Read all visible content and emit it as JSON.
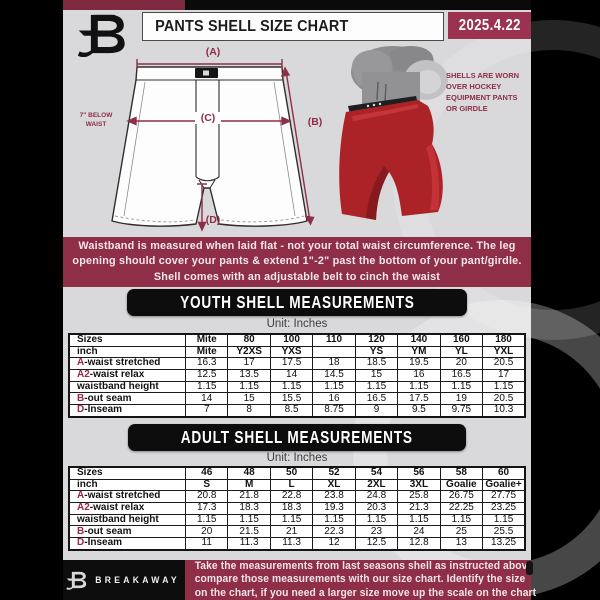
{
  "header": {
    "title": "PANTS SHELL SIZE CHART",
    "date": "2025.4.22"
  },
  "brand": {
    "name": "BREAKAWAY"
  },
  "diagram": {
    "label_a": "(A)",
    "label_b": "(B)",
    "label_c": "(C)",
    "label_d": "(D)",
    "waist_note_lines": [
      "7\" BELOW",
      "WAIST"
    ],
    "photo_note_lines": [
      "SHELLS ARE WORN",
      "OVER HOCKEY",
      "EQUIPMENT PANTS",
      "OR GIRDLE"
    ]
  },
  "banner": {
    "lines": [
      "Waistband is measured when laid flat - not your total waist circumference. The leg",
      "opening should cover your pants & extend 1\"-2\" past the bottom of your pant/girdle.",
      "Shell comes with an adjustable belt to cinch the waist"
    ]
  },
  "youth": {
    "heading": "YOUTH SHELL MEASUREMENTS",
    "unit": "Unit: Inches",
    "table": {
      "rows": [
        {
          "prefix": "",
          "label": "Sizes",
          "header": true,
          "values": [
            "Mite",
            "80",
            "100",
            "110",
            "120",
            "140",
            "160",
            "180"
          ]
        },
        {
          "prefix": "",
          "label": "inch",
          "header": true,
          "values": [
            "Mite",
            "Y2XS",
            "YXS",
            "",
            "YS",
            "YM",
            "YL",
            "YXL"
          ]
        },
        {
          "prefix": "A",
          "label": "-waist stretched",
          "values": [
            "16.3",
            "17",
            "17.5",
            "18",
            "18.5",
            "19.5",
            "20",
            "20.5"
          ]
        },
        {
          "prefix": "A2",
          "label": "-waist relax",
          "values": [
            "12.5",
            "13.5",
            "14",
            "14.5",
            "15",
            "16",
            "16.5",
            "17"
          ]
        },
        {
          "prefix": "",
          "label": "waistband height",
          "values": [
            "1.15",
            "1.15",
            "1.15",
            "1.15",
            "1.15",
            "1.15",
            "1.15",
            "1.15"
          ]
        },
        {
          "prefix": "B",
          "label": "-out seam",
          "values": [
            "14",
            "15",
            "15.5",
            "16",
            "16.5",
            "17.5",
            "19",
            "20.5"
          ]
        },
        {
          "prefix": "D",
          "label": "-Inseam",
          "values": [
            "7",
            "8",
            "8.5",
            "8.75",
            "9",
            "9.5",
            "9.75",
            "10.3"
          ]
        }
      ]
    }
  },
  "adult": {
    "heading": "ADULT SHELL MEASUREMENTS",
    "unit": "Unit: Inches",
    "table": {
      "rows": [
        {
          "prefix": "",
          "label": "Sizes",
          "header": true,
          "values": [
            "46",
            "48",
            "50",
            "52",
            "54",
            "56",
            "58",
            "60"
          ]
        },
        {
          "prefix": "",
          "label": "inch",
          "header": true,
          "values": [
            "S",
            "M",
            "L",
            "XL",
            "2XL",
            "3XL",
            "Goalie",
            "Goalie+"
          ]
        },
        {
          "prefix": "A",
          "label": "-waist stretched",
          "values": [
            "20.8",
            "21.8",
            "22.8",
            "23.8",
            "24.8",
            "25.8",
            "26.75",
            "27.75"
          ]
        },
        {
          "prefix": "A2",
          "label": "-waist relax",
          "values": [
            "17.3",
            "18.3",
            "18.3",
            "19.3",
            "20.3",
            "21.3",
            "22.25",
            "23.25"
          ]
        },
        {
          "prefix": "",
          "label": "waistband height",
          "values": [
            "1.15",
            "1.15",
            "1.15",
            "1.15",
            "1.15",
            "1.15",
            "1.15",
            "1.15"
          ]
        },
        {
          "prefix": "B",
          "label": "-out seam",
          "values": [
            "20",
            "21.5",
            "21",
            "22.3",
            "23",
            "24",
            "25",
            "25.5"
          ]
        },
        {
          "prefix": "D",
          "label": "-Inseam",
          "values": [
            "11",
            "11.3",
            "11.3",
            "12",
            "12.5",
            "12.8",
            "13",
            "13.25"
          ]
        }
      ]
    }
  },
  "footer": {
    "lines": [
      "Take the measurements from last seasons shell as instructed above",
      "compare those measurements  with our size chart. Identify the size",
      "on the chart, if you need a larger size move up the scale on the chart"
    ]
  },
  "colors": {
    "maroon": "#8e2e47",
    "maroon_bright": "#9a3250",
    "top_strip": "#7d2940",
    "background_gray": "#d9d9db",
    "banner_text": "#f5e7ec",
    "shell_red": "#ac2327",
    "row_label_red": "#9c2742"
  }
}
